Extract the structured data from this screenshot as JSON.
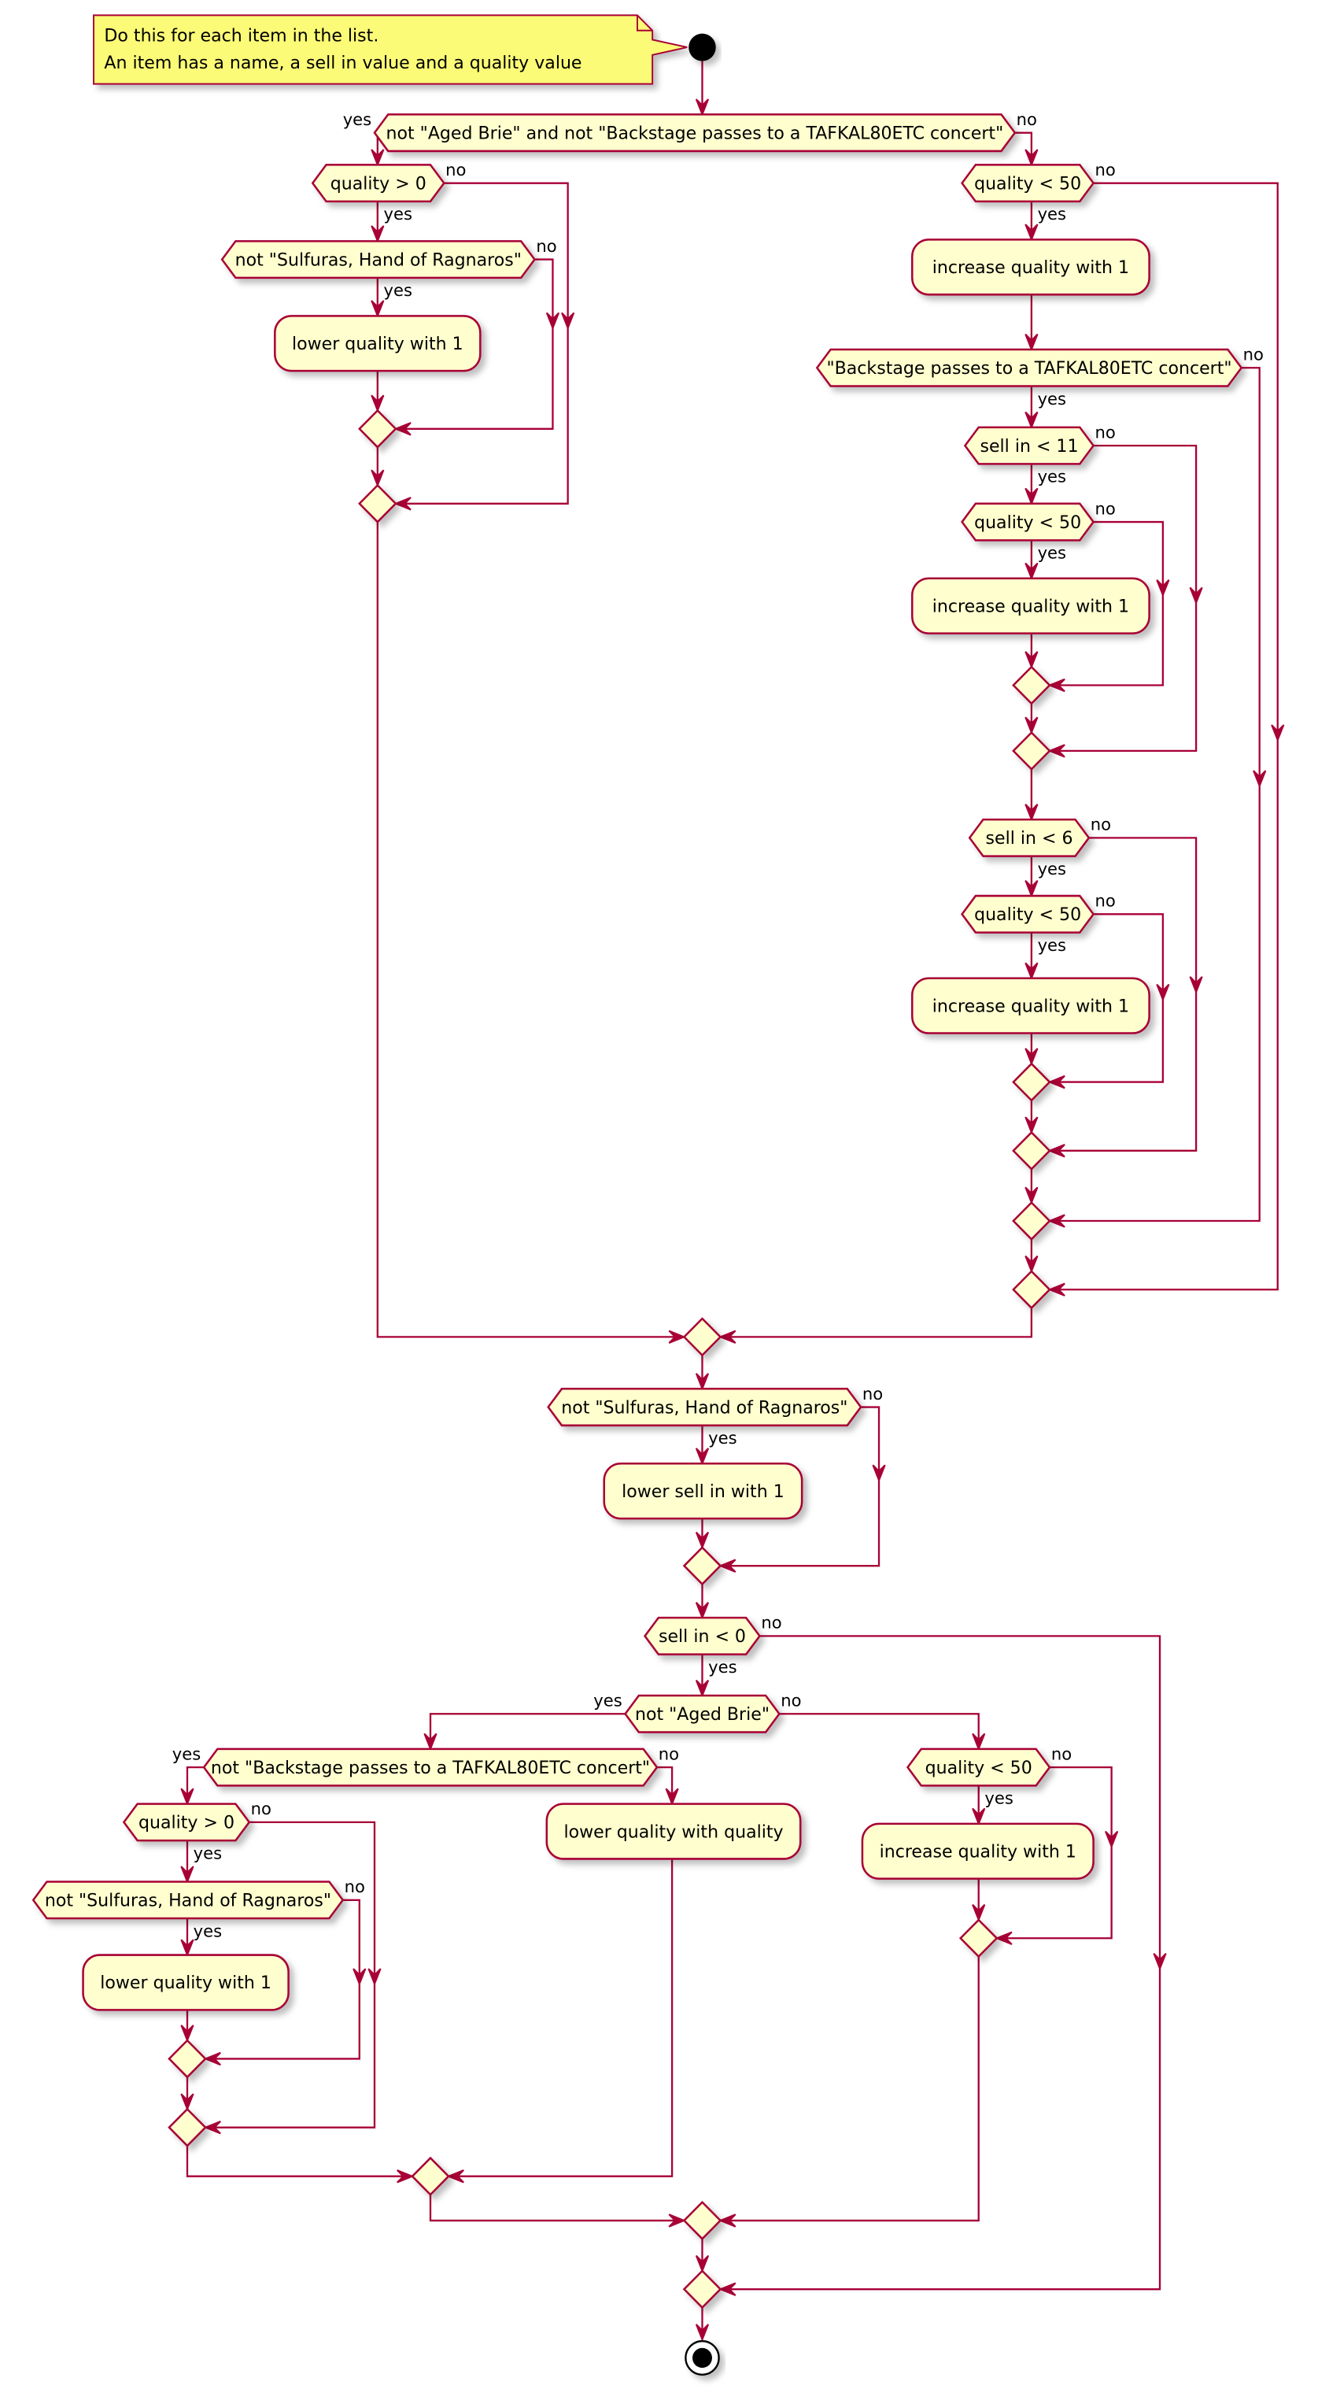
{
  "colors": {
    "border": "#A80036",
    "fill": "#FEFECE",
    "note_fill": "#FBFB77",
    "start": "#000000"
  },
  "note": {
    "lines": [
      "Do this for each item in the list.",
      "An item has a name, a sell in value and a quality value"
    ]
  },
  "branch_labels": {
    "yes": "yes",
    "no": "no"
  },
  "decisions": [
    "not \"Aged Brie\" and not \"Backstage passes to a TAFKAL80ETC concert\"",
    "quality > 0",
    "not \"Sulfuras, Hand of Ragnaros\"",
    "quality < 50",
    "\"Backstage passes to a TAFKAL80ETC concert\"",
    "sell in < 11",
    "quality < 50",
    "sell in < 6",
    "quality < 50",
    "not \"Sulfuras, Hand of Ragnaros\"",
    "sell in < 0",
    "not \"Aged Brie\"",
    "not \"Backstage passes to a TAFKAL80ETC concert\"",
    "quality > 0",
    "not \"Sulfuras, Hand of Ragnaros\"",
    "quality < 50"
  ],
  "actions": [
    "lower quality with 1",
    "increase quality with 1",
    "increase quality with 1",
    "increase quality with 1",
    "lower sell in with 1",
    "lower quality with quality",
    "lower quality with 1",
    "increase quality with 1"
  ]
}
